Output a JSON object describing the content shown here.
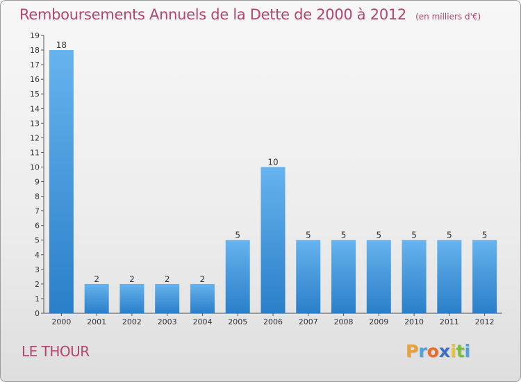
{
  "title": "Remboursements Annuels de la Dette de 2000 à 2012",
  "unit": "(en milliers d'€)",
  "commune": "LE THOUR",
  "logo": {
    "letters": [
      "P",
      "r",
      "o",
      "x",
      "i",
      "t",
      "i"
    ],
    "colors": [
      "#e8a23a",
      "#4aa3df",
      "#e86c2a",
      "#3d6fc4",
      "#e8c23a",
      "#7cbf3a",
      "#4aa3df"
    ]
  },
  "colors": {
    "bar_light": "#66b3ee",
    "bar_dark": "#2a7fc8",
    "title": "#b5446e"
  },
  "chart_data": {
    "type": "bar",
    "title": "Remboursements Annuels de la Dette de 2000 à 2012",
    "subtitle": "(en milliers d'€)",
    "categories": [
      "2000",
      "2001",
      "2002",
      "2003",
      "2004",
      "2005",
      "2006",
      "2007",
      "2008",
      "2009",
      "2010",
      "2011",
      "2012"
    ],
    "values": [
      18,
      2,
      2,
      2,
      2,
      5,
      10,
      5,
      5,
      5,
      5,
      5,
      5
    ],
    "data_labels": [
      "18",
      "2",
      "2",
      "2",
      "2",
      "5",
      "10",
      "5",
      "5",
      "5",
      "5",
      "5",
      "5"
    ],
    "yticks": [
      "0",
      "1",
      "2",
      "3",
      "4",
      "5",
      "6",
      "7",
      "8",
      "9",
      "10",
      "11",
      "12",
      "13",
      "14",
      "15",
      "16",
      "17",
      "18",
      "19"
    ],
    "ylim": [
      0,
      19
    ],
    "grid": false
  }
}
